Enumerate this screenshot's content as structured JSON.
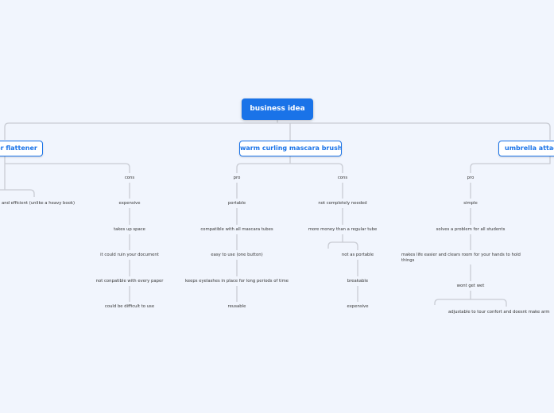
{
  "root": "business idea",
  "topics": [
    {
      "label": "er flattener",
      "partial_pro": "and efficient (unlike a heavy book)",
      "cons_label": "cons",
      "cons": [
        "expensive",
        "takes up space",
        "it could ruin your document",
        "not conpatible with every paper",
        "could be difficult to use"
      ]
    },
    {
      "label": "warm curling mascara brush",
      "pro_label": "pro",
      "pro": [
        "portable",
        "compatible with all mascara tubes",
        "easy to use (one button)",
        "keeps eyelashes in place for long periods of time",
        "reusable"
      ],
      "cons_label": "cons",
      "cons": [
        "not completely needed",
        "more money than a regular tube",
        "not as portable",
        "breakable",
        "expensive"
      ]
    },
    {
      "label": "umbrella attach",
      "pro_label": "pro",
      "pro": [
        "simple",
        "solves a problem for all students",
        "makes life easier and clears room for your hands to hold things",
        "wont get wet",
        "adjustable to tour confort and doesnt make arm"
      ]
    }
  ],
  "colors": {
    "accent": "#1a73e8",
    "background": "#f1f5fd",
    "connector": "#c9ccd4"
  }
}
